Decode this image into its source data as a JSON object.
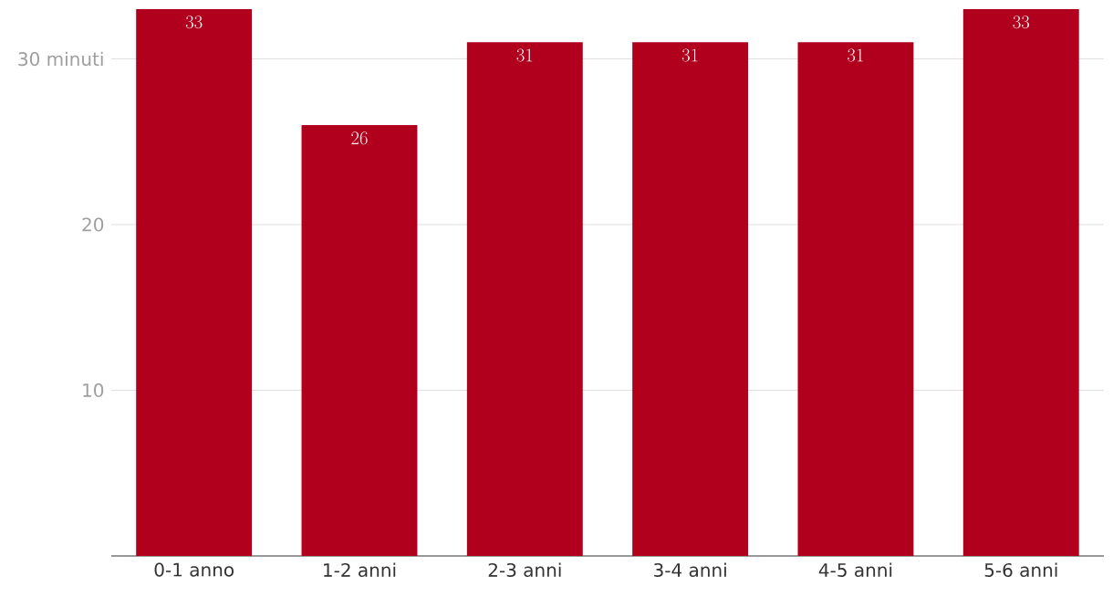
{
  "chart_data": {
    "type": "bar",
    "categories": [
      "0-1 anno",
      "1-2 anni",
      "2-3 anni",
      "3-4 anni",
      "4-5 anni",
      "5-6 anni"
    ],
    "values": [
      33,
      26,
      31,
      31,
      31,
      33
    ],
    "color": "#b0001e",
    "ylim": [
      0,
      33
    ],
    "yticks": [
      10,
      20,
      {
        "value": 30,
        "label": "30 minuti"
      }
    ],
    "grid": "y",
    "data_labels": true
  }
}
